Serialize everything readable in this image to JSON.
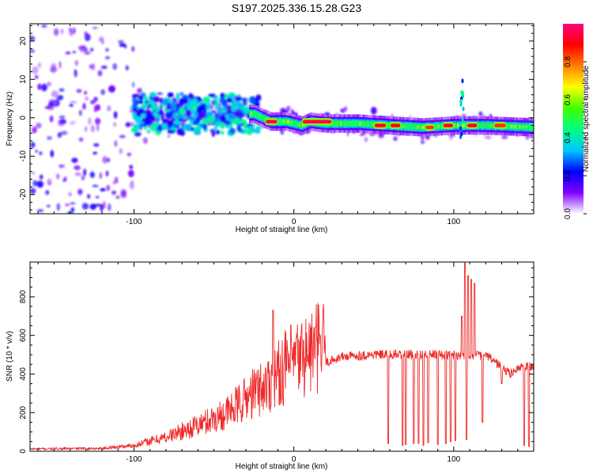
{
  "title": "S197.2025.336.15.28.G23",
  "chart_data": [
    {
      "type": "heatmap",
      "name": "spectrogram",
      "xlabel": "Height of straight line (km)",
      "ylabel": "Frequency (Hz)",
      "xlim": [
        -165,
        150
      ],
      "ylim": [
        -25,
        24.5
      ],
      "xticks": [
        -100,
        0,
        100
      ],
      "yticks": [
        -20,
        -10,
        0,
        10,
        20
      ],
      "colorbar": {
        "label": "Normalized spectral amplitude",
        "range": [
          0,
          1
        ],
        "ticks": [
          "0.0",
          "0.2",
          "0.4",
          "0.6",
          "0.8"
        ],
        "tick_values": [
          0.0,
          0.2,
          0.4,
          0.6,
          0.8
        ],
        "stops": [
          "#ffffff",
          "#8000ff",
          "#0000ff",
          "#00c8ff",
          "#00ff80",
          "#40ff00",
          "#ffff00",
          "#ff8000",
          "#ff0000",
          "#ff0080"
        ]
      },
      "ridge": [
        {
          "x": -25,
          "y": 1.0
        },
        {
          "x": -15,
          "y": -1.0
        },
        {
          "x": -5,
          "y": -1.0
        },
        {
          "x": 5,
          "y": -2.0
        },
        {
          "x": 10,
          "y": -1.0
        },
        {
          "x": 20,
          "y": -1.5
        },
        {
          "x": 40,
          "y": -1.5
        },
        {
          "x": 60,
          "y": -2.0
        },
        {
          "x": 80,
          "y": -2.5
        },
        {
          "x": 100,
          "y": -2.0
        },
        {
          "x": 120,
          "y": -2.0
        },
        {
          "x": 150,
          "y": -2.5
        }
      ],
      "hot_segments": [
        {
          "x0": -18,
          "x1": -10,
          "y": -1.0,
          "amp": 0.95
        },
        {
          "x0": 5,
          "x1": 24,
          "y": -1.0,
          "amp": 0.95
        },
        {
          "x0": 50,
          "x1": 58,
          "y": -2.0,
          "amp": 0.92
        },
        {
          "x0": 60,
          "x1": 67,
          "y": -2.0,
          "amp": 0.9
        },
        {
          "x0": 82,
          "x1": 88,
          "y": -2.5,
          "amp": 0.85
        },
        {
          "x0": 93,
          "x1": 100,
          "y": -2.0,
          "amp": 0.92
        },
        {
          "x0": 108,
          "x1": 115,
          "y": -2.0,
          "amp": 0.92
        },
        {
          "x0": 125,
          "x1": 133,
          "y": -2.0,
          "amp": 0.85
        }
      ]
    },
    {
      "type": "line",
      "name": "snr",
      "xlabel": "Height of straight line (km)",
      "ylabel": "SNR (10 * v/v)",
      "xlim": [
        -165,
        150
      ],
      "ylim": [
        0,
        980
      ],
      "xticks": [
        -100,
        0,
        100
      ],
      "yticks": [
        0,
        200,
        400,
        600,
        800
      ],
      "color": "#ee2a2a",
      "envelope": [
        {
          "x": -165,
          "y": 10
        },
        {
          "x": -120,
          "y": 12
        },
        {
          "x": -100,
          "y": 25
        },
        {
          "x": -80,
          "y": 60
        },
        {
          "x": -60,
          "y": 110
        },
        {
          "x": -40,
          "y": 170
        },
        {
          "x": -25,
          "y": 250
        },
        {
          "x": -15,
          "y": 290
        },
        {
          "x": -5,
          "y": 360
        },
        {
          "x": 5,
          "y": 400
        },
        {
          "x": 20,
          "y": 460
        },
        {
          "x": 30,
          "y": 490
        },
        {
          "x": 50,
          "y": 500
        },
        {
          "x": 80,
          "y": 500
        },
        {
          "x": 100,
          "y": 500
        },
        {
          "x": 120,
          "y": 495
        },
        {
          "x": 125,
          "y": 470
        },
        {
          "x": 135,
          "y": 400
        },
        {
          "x": 140,
          "y": 430
        },
        {
          "x": 150,
          "y": 440
        }
      ],
      "spikes": [
        {
          "x": -13,
          "y": 730
        },
        {
          "x": 107,
          "y": 975
        },
        {
          "x": 109,
          "y": 910
        },
        {
          "x": 111,
          "y": 890
        },
        {
          "x": 113,
          "y": 870
        },
        {
          "x": 105,
          "y": 700
        }
      ],
      "dropouts": [
        {
          "x": 59,
          "y": 40
        },
        {
          "x": 68,
          "y": 30
        },
        {
          "x": 70,
          "y": 35
        },
        {
          "x": 75,
          "y": 40
        },
        {
          "x": 78,
          "y": 40
        },
        {
          "x": 81,
          "y": 30
        },
        {
          "x": 84,
          "y": 45
        },
        {
          "x": 90,
          "y": 35
        },
        {
          "x": 95,
          "y": 40
        },
        {
          "x": 98,
          "y": 50
        },
        {
          "x": 101,
          "y": 55
        },
        {
          "x": 108,
          "y": 60
        },
        {
          "x": 118,
          "y": 150
        },
        {
          "x": 130,
          "y": 350
        },
        {
          "x": 144,
          "y": 30
        },
        {
          "x": 147,
          "y": 25
        }
      ]
    }
  ]
}
